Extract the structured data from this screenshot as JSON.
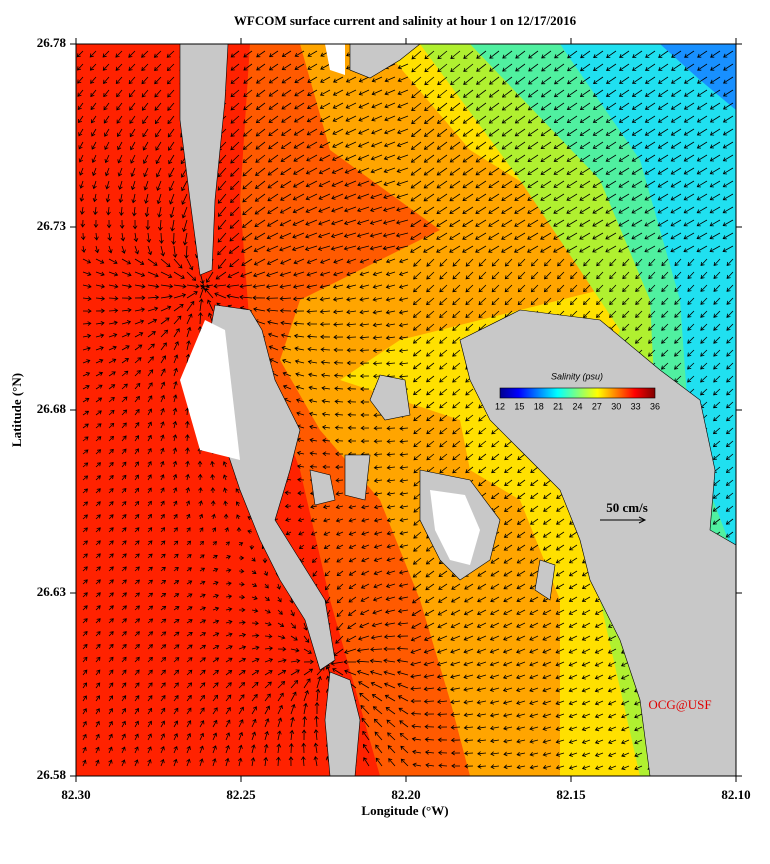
{
  "chart_data": {
    "type": "map",
    "title": "WFCOM surface current and salinity at hour 1 on 12/17/2016",
    "x_label": "Longitude (°W)",
    "y_label": "Latitude (°N)",
    "xlim": [
      82.3,
      82.1
    ],
    "ylim": [
      26.58,
      26.78
    ],
    "xticks": [
      {
        "value": 82.3,
        "label": "82.30"
      },
      82.25,
      {
        "value": 82.2,
        "label": "82.20"
      },
      82.15,
      {
        "value": 82.1,
        "label": "82.10"
      }
    ],
    "yticks": [
      26.58,
      26.63,
      26.68,
      26.73,
      26.78
    ],
    "colorbar": {
      "label": "Salinity (psu)",
      "lim": [
        12,
        36
      ],
      "ticks": [
        12,
        15,
        18,
        21,
        24,
        27,
        30,
        33,
        36
      ]
    },
    "scale_label": "50 cm/s",
    "credit": "OCG@USF"
  }
}
